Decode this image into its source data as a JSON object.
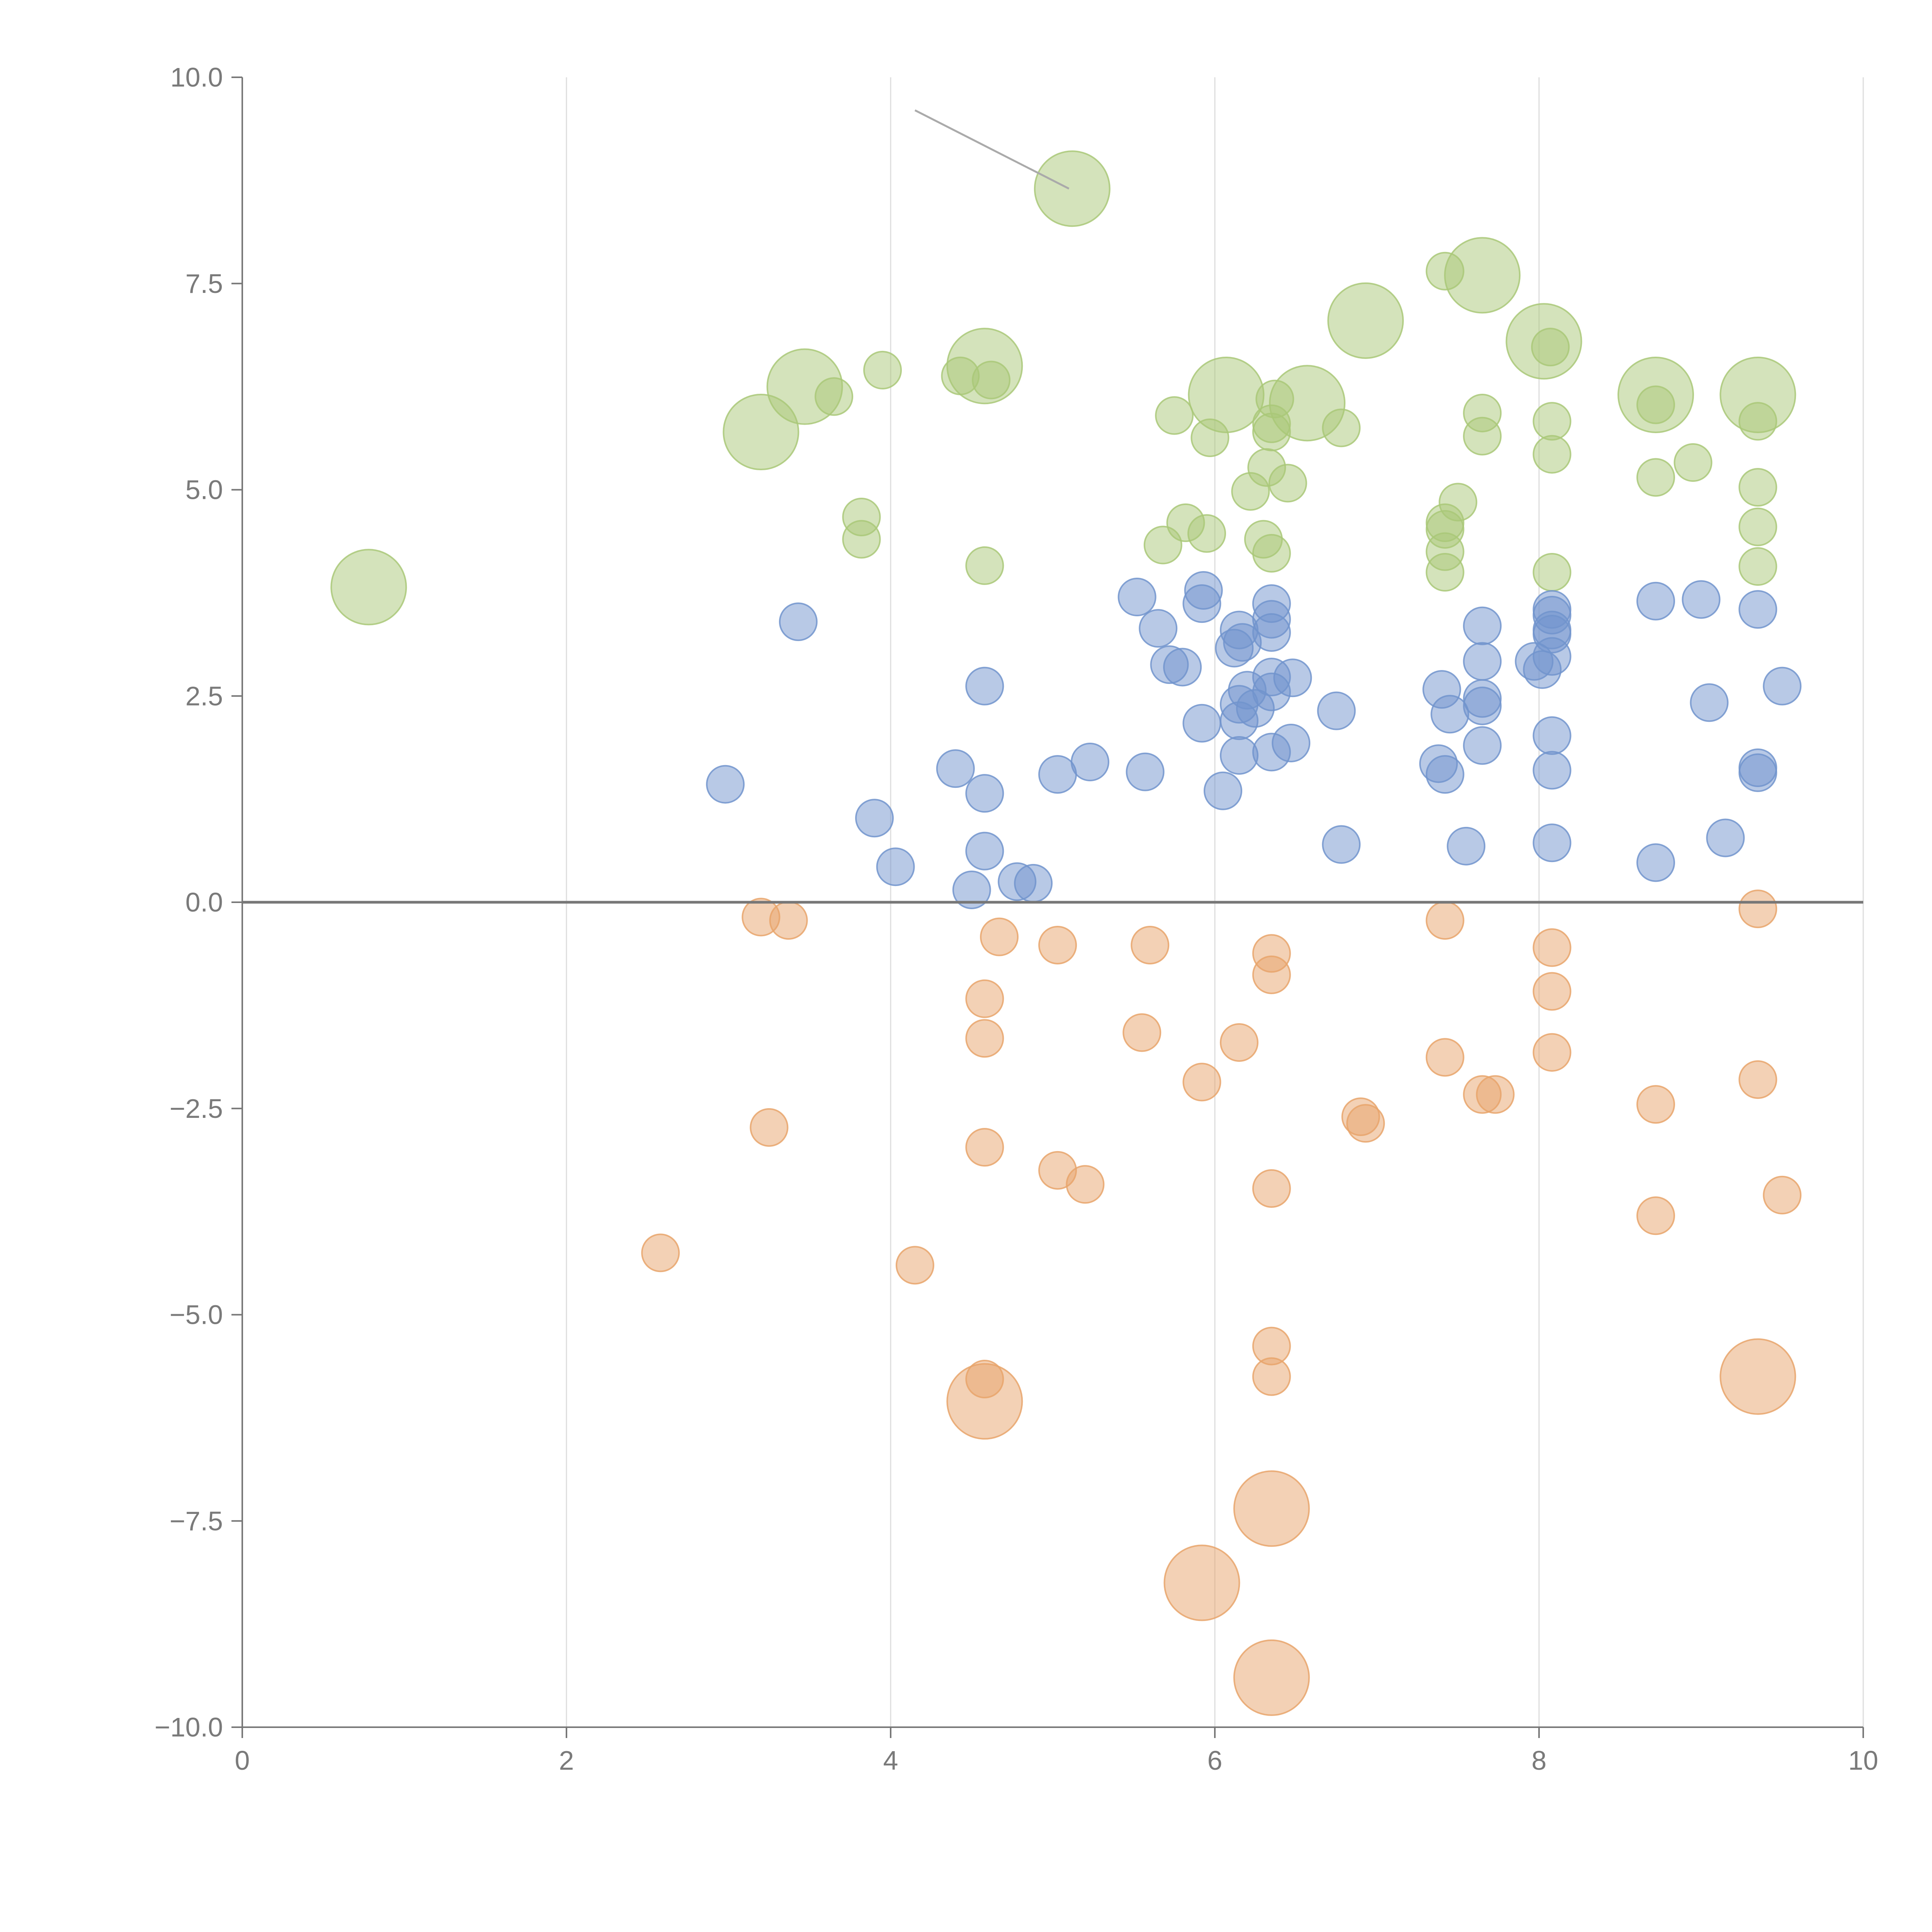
{
  "chart_data": {
    "type": "scatter",
    "title": "",
    "xlabel": "",
    "ylabel": "",
    "xlim": [
      0,
      10
    ],
    "ylim": [
      -10,
      10
    ],
    "grid": "vertical",
    "zero_line": true,
    "xticks": [
      0,
      2,
      4,
      6,
      8,
      10
    ],
    "xtick_labels": [
      "0",
      "2",
      "4",
      "6",
      "8",
      "10"
    ],
    "yticks": [
      10,
      7.5,
      5,
      2.5,
      0,
      -2.5,
      -5,
      -7.5,
      -10
    ],
    "ytick_labels": [
      "10.0",
      "7.5",
      "5.0",
      "2.5",
      "0.0",
      "−2.5",
      "−5.0",
      "−7.5",
      "−10.0"
    ],
    "colors": {
      "green": "#a9c878",
      "blue": "#7194cd",
      "orange": "#e8a46b",
      "axis": "#777777",
      "grid": "#dddddd"
    },
    "annotation_line": {
      "from": [
        4.15,
        9.6
      ],
      "to": [
        5.1,
        8.65
      ],
      "color": "#aaaaaa"
    },
    "series": [
      {
        "name": "green",
        "color": "#a9c878",
        "points": [
          [
            5.12,
            8.65,
            "L"
          ],
          [
            7.65,
            7.6,
            "L"
          ],
          [
            6.93,
            7.05,
            "L"
          ],
          [
            8.03,
            6.8,
            "L"
          ],
          [
            4.58,
            6.5,
            "L"
          ],
          [
            3.47,
            6.25,
            "L"
          ],
          [
            6.07,
            6.15,
            "L"
          ],
          [
            8.72,
            6.15,
            "L"
          ],
          [
            9.35,
            6.15,
            "L"
          ],
          [
            6.57,
            6.05,
            "L"
          ],
          [
            3.2,
            5.7,
            "L"
          ],
          [
            0.78,
            3.82,
            "L"
          ],
          [
            7.42,
            7.65,
            "S"
          ],
          [
            3.95,
            6.45,
            "S"
          ],
          [
            4.43,
            6.38,
            "S"
          ],
          [
            4.62,
            6.33,
            "S"
          ],
          [
            3.65,
            6.13,
            "S"
          ],
          [
            6.37,
            6.1,
            "S"
          ],
          [
            8.72,
            6.03,
            "S"
          ],
          [
            7.65,
            5.93,
            "S"
          ],
          [
            5.75,
            5.9,
            "S"
          ],
          [
            8.08,
            5.83,
            "S"
          ],
          [
            9.35,
            5.83,
            "S"
          ],
          [
            6.78,
            5.75,
            "S"
          ],
          [
            6.35,
            5.7,
            "S"
          ],
          [
            7.65,
            5.65,
            "S"
          ],
          [
            5.97,
            5.63,
            "S"
          ],
          [
            8.08,
            5.43,
            "S"
          ],
          [
            8.95,
            5.33,
            "S"
          ],
          [
            6.32,
            5.27,
            "S"
          ],
          [
            8.72,
            5.15,
            "S"
          ],
          [
            6.45,
            5.08,
            "S"
          ],
          [
            9.35,
            5.03,
            "S"
          ],
          [
            6.22,
            4.98,
            "S"
          ],
          [
            7.5,
            4.85,
            "S"
          ],
          [
            3.82,
            4.67,
            "S"
          ],
          [
            5.82,
            4.6,
            "S"
          ],
          [
            7.42,
            4.6,
            "S"
          ],
          [
            9.35,
            4.55,
            "S"
          ],
          [
            7.42,
            4.52,
            "S"
          ],
          [
            5.95,
            4.47,
            "S"
          ],
          [
            3.82,
            4.4,
            "S"
          ],
          [
            6.3,
            4.4,
            "S"
          ],
          [
            5.68,
            4.33,
            "S"
          ],
          [
            7.42,
            4.25,
            "S"
          ],
          [
            6.35,
            4.23,
            "S"
          ],
          [
            4.58,
            4.08,
            "S"
          ],
          [
            9.35,
            4.07,
            "S"
          ],
          [
            7.42,
            4.0,
            "S"
          ],
          [
            8.08,
            4.0,
            "S"
          ],
          [
            6.35,
            5.8,
            "S"
          ],
          [
            8.07,
            6.73,
            "S"
          ]
        ]
      },
      {
        "name": "blue",
        "color": "#7194cd",
        "points": [
          [
            5.93,
            3.78
          ],
          [
            5.52,
            3.7
          ],
          [
            8.72,
            3.65
          ],
          [
            9.0,
            3.67
          ],
          [
            6.35,
            3.62
          ],
          [
            5.92,
            3.62
          ],
          [
            9.35,
            3.55
          ],
          [
            8.08,
            3.55
          ],
          [
            8.08,
            3.48
          ],
          [
            6.35,
            3.43
          ],
          [
            3.43,
            3.4
          ],
          [
            7.65,
            3.35
          ],
          [
            5.65,
            3.32
          ],
          [
            6.15,
            3.3
          ],
          [
            8.08,
            3.3
          ],
          [
            6.35,
            3.27
          ],
          [
            8.08,
            3.25
          ],
          [
            6.17,
            3.15
          ],
          [
            6.12,
            3.08
          ],
          [
            8.08,
            2.98
          ],
          [
            7.65,
            2.92
          ],
          [
            7.97,
            2.92
          ],
          [
            5.72,
            2.88
          ],
          [
            5.8,
            2.85
          ],
          [
            8.02,
            2.82
          ],
          [
            6.35,
            2.73
          ],
          [
            6.48,
            2.72
          ],
          [
            9.5,
            2.62
          ],
          [
            4.58,
            2.62
          ],
          [
            7.4,
            2.58
          ],
          [
            6.2,
            2.57
          ],
          [
            6.35,
            2.55
          ],
          [
            7.65,
            2.47
          ],
          [
            6.15,
            2.4
          ],
          [
            9.05,
            2.42
          ],
          [
            7.65,
            2.38
          ],
          [
            6.25,
            2.35
          ],
          [
            6.75,
            2.32
          ],
          [
            7.45,
            2.28
          ],
          [
            6.15,
            2.2
          ],
          [
            5.92,
            2.17
          ],
          [
            8.08,
            2.02
          ],
          [
            6.47,
            1.93
          ],
          [
            7.65,
            1.9
          ],
          [
            6.35,
            1.82
          ],
          [
            6.15,
            1.78
          ],
          [
            5.23,
            1.7
          ],
          [
            7.38,
            1.68
          ],
          [
            9.35,
            1.63
          ],
          [
            4.4,
            1.62
          ],
          [
            8.08,
            1.6
          ],
          [
            5.57,
            1.58
          ],
          [
            9.35,
            1.57
          ],
          [
            7.42,
            1.55
          ],
          [
            5.03,
            1.55
          ],
          [
            2.98,
            1.43
          ],
          [
            6.05,
            1.35
          ],
          [
            4.58,
            1.32
          ],
          [
            3.9,
            1.02
          ],
          [
            9.15,
            0.78
          ],
          [
            8.08,
            0.72
          ],
          [
            6.78,
            0.7
          ],
          [
            7.55,
            0.68
          ],
          [
            4.58,
            0.62
          ],
          [
            8.72,
            0.48
          ],
          [
            4.03,
            0.43
          ],
          [
            4.78,
            0.25
          ],
          [
            4.88,
            0.23
          ],
          [
            4.5,
            0.15
          ]
        ]
      },
      {
        "name": "orange",
        "color": "#e8a46b",
        "points": [
          [
            4.58,
            -6.05,
            "L"
          ],
          [
            9.35,
            -5.75,
            "L"
          ],
          [
            6.35,
            -7.35,
            "L"
          ],
          [
            5.92,
            -8.25,
            "L"
          ],
          [
            6.35,
            -9.4,
            "L"
          ],
          [
            9.35,
            -0.08,
            "S"
          ],
          [
            3.2,
            -0.18,
            "S"
          ],
          [
            3.37,
            -0.22,
            "S"
          ],
          [
            7.42,
            -0.22,
            "S"
          ],
          [
            4.67,
            -0.42,
            "S"
          ],
          [
            5.03,
            -0.52,
            "S"
          ],
          [
            5.6,
            -0.52,
            "S"
          ],
          [
            8.08,
            -0.55,
            "S"
          ],
          [
            6.35,
            -0.62,
            "S"
          ],
          [
            6.35,
            -0.88,
            "S"
          ],
          [
            8.08,
            -1.08,
            "S"
          ],
          [
            4.58,
            -1.17,
            "S"
          ],
          [
            5.55,
            -1.58,
            "S"
          ],
          [
            4.58,
            -1.65,
            "S"
          ],
          [
            6.15,
            -1.7,
            "S"
          ],
          [
            8.08,
            -1.82,
            "S"
          ],
          [
            7.42,
            -1.88,
            "S"
          ],
          [
            9.35,
            -2.15,
            "S"
          ],
          [
            5.92,
            -2.18,
            "S"
          ],
          [
            7.65,
            -2.33,
            "S"
          ],
          [
            7.73,
            -2.33,
            "S"
          ],
          [
            8.72,
            -2.45,
            "S"
          ],
          [
            6.9,
            -2.6,
            "S"
          ],
          [
            6.93,
            -2.68,
            "S"
          ],
          [
            3.25,
            -2.73,
            "S"
          ],
          [
            4.58,
            -2.97,
            "S"
          ],
          [
            5.03,
            -3.25,
            "S"
          ],
          [
            5.2,
            -3.42,
            "S"
          ],
          [
            6.35,
            -3.47,
            "S"
          ],
          [
            9.5,
            -3.55,
            "S"
          ],
          [
            8.72,
            -3.8,
            "S"
          ],
          [
            2.58,
            -4.25,
            "S"
          ],
          [
            4.15,
            -4.4,
            "S"
          ],
          [
            6.35,
            -5.38,
            "S"
          ],
          [
            4.58,
            -5.78,
            "S"
          ],
          [
            6.35,
            -5.75,
            "S"
          ]
        ]
      }
    ]
  }
}
